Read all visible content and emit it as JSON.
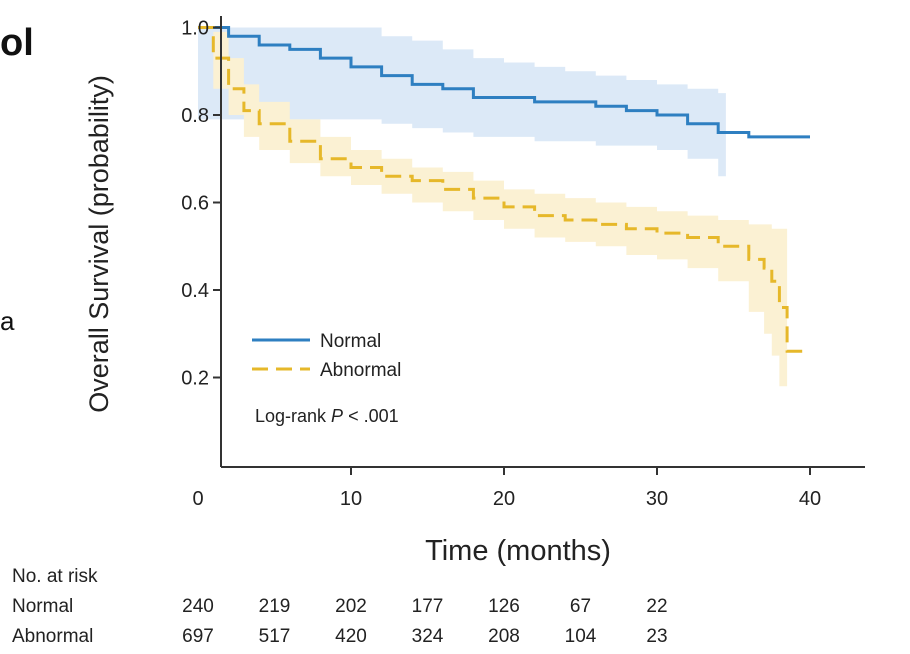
{
  "edge_text": {
    "left_top": "ol",
    "left_mid": "a"
  },
  "chart_data": {
    "type": "line",
    "title": "",
    "xlabel": "Time (months)",
    "ylabel": "Overall Survival (probability)",
    "xlim": [
      0,
      42
    ],
    "ylim": [
      0,
      1.05
    ],
    "x_ticks": [
      0,
      10,
      20,
      30,
      40
    ],
    "y_ticks": [
      0.2,
      0.4,
      0.6,
      0.8,
      1.0
    ],
    "x_tick_labels": [
      "0",
      "10",
      "20",
      "30",
      "40"
    ],
    "y_tick_labels": [
      "0.2",
      "0.4",
      "0.6",
      "0.8",
      "1.0"
    ],
    "grid": false,
    "legend": {
      "placement": "lower-left"
    },
    "annotation": {
      "prefix": "Log-rank ",
      "italic": "P",
      "suffix": " < .001"
    },
    "series": [
      {
        "name": "Normal",
        "color": "#2e7fc1",
        "band_color": "#dce9f7",
        "style": "solid",
        "x": [
          0,
          2,
          4,
          6,
          8,
          10,
          12,
          14,
          16,
          18,
          20,
          22,
          24,
          26,
          28,
          30,
          32,
          34,
          36,
          38,
          40
        ],
        "y": [
          1.0,
          0.98,
          0.96,
          0.95,
          0.93,
          0.91,
          0.89,
          0.87,
          0.86,
          0.84,
          0.84,
          0.83,
          0.83,
          0.82,
          0.81,
          0.8,
          0.78,
          0.76,
          0.75,
          0.75,
          0.75
        ],
        "lower": [
          0.79,
          0.79,
          0.79,
          0.79,
          0.79,
          0.79,
          0.78,
          0.77,
          0.76,
          0.75,
          0.75,
          0.74,
          0.74,
          0.73,
          0.73,
          0.72,
          0.7,
          0.66,
          0.66,
          0.66,
          0.66
        ],
        "upper": [
          1.0,
          1.0,
          1.0,
          1.0,
          1.0,
          1.0,
          0.98,
          0.97,
          0.95,
          0.93,
          0.92,
          0.91,
          0.9,
          0.89,
          0.88,
          0.87,
          0.86,
          0.85,
          0.85,
          0.85,
          0.85
        ],
        "band_end": 34.5,
        "line_end": 38.5
      },
      {
        "name": "Abnormal",
        "color": "#e6b82a",
        "band_color": "#fbf1d3",
        "style": "dashed",
        "x": [
          0,
          1,
          2,
          3,
          4,
          6,
          8,
          10,
          12,
          14,
          16,
          18,
          20,
          22,
          24,
          26,
          28,
          30,
          32,
          34,
          36,
          37,
          37.5,
          38,
          38.5
        ],
        "y": [
          1.0,
          0.93,
          0.86,
          0.81,
          0.78,
          0.74,
          0.7,
          0.68,
          0.66,
          0.65,
          0.63,
          0.61,
          0.59,
          0.57,
          0.56,
          0.55,
          0.54,
          0.53,
          0.52,
          0.5,
          0.47,
          0.45,
          0.42,
          0.36,
          0.26
        ],
        "lower": [
          1.0,
          0.86,
          0.8,
          0.75,
          0.72,
          0.69,
          0.66,
          0.64,
          0.62,
          0.6,
          0.58,
          0.56,
          0.54,
          0.52,
          0.51,
          0.5,
          0.48,
          0.47,
          0.45,
          0.42,
          0.35,
          0.3,
          0.25,
          0.18,
          0.03
        ],
        "upper": [
          1.0,
          0.99,
          0.93,
          0.87,
          0.83,
          0.79,
          0.75,
          0.72,
          0.7,
          0.68,
          0.67,
          0.65,
          0.63,
          0.62,
          0.61,
          0.6,
          0.59,
          0.58,
          0.57,
          0.56,
          0.55,
          0.55,
          0.54,
          0.54,
          0.54
        ],
        "band_end": 38.5,
        "line_end": 39.5
      }
    ]
  },
  "risk_table": {
    "title": "No. at risk",
    "times": [
      0,
      5,
      10,
      15,
      20,
      25,
      30
    ],
    "rows": [
      {
        "label": "Normal",
        "values": [
          "240",
          "219",
          "202",
          "177",
          "126",
          "67",
          "22"
        ]
      },
      {
        "label": "Abnormal",
        "values": [
          "697",
          "517",
          "420",
          "324",
          "208",
          "104",
          "23"
        ]
      }
    ]
  }
}
